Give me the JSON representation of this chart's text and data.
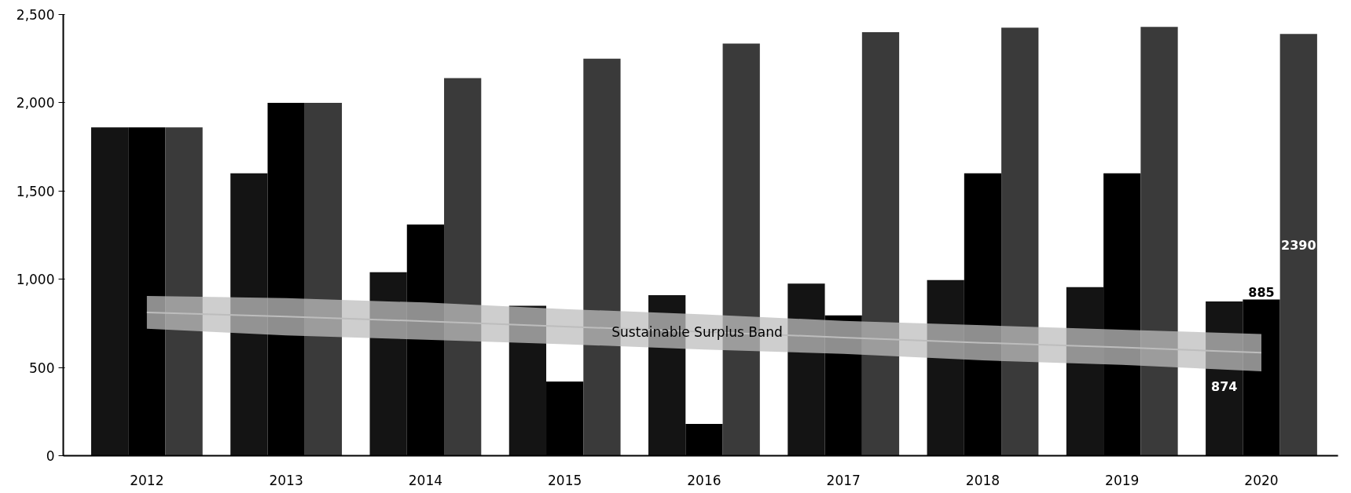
{
  "chart_data": {
    "type": "bar",
    "categories": [
      "2012",
      "2013",
      "2014",
      "2015",
      "2016",
      "2017",
      "2018",
      "2019",
      "2020"
    ],
    "series": [
      {
        "color": "#141414",
        "values": [
          1860,
          1600,
          1040,
          850,
          910,
          975,
          995,
          955,
          874
        ],
        "value_labels": [
          null,
          null,
          null,
          null,
          null,
          null,
          null,
          null,
          "874"
        ]
      },
      {
        "color": "#000000",
        "values": [
          1860,
          2000,
          1310,
          420,
          180,
          795,
          1600,
          1600,
          885
        ],
        "value_labels": [
          null,
          null,
          null,
          null,
          null,
          null,
          null,
          null,
          "885"
        ]
      },
      {
        "color": "#3a3a3a",
        "values": [
          1860,
          2000,
          2140,
          2250,
          2335,
          2400,
          2425,
          2430,
          2390
        ],
        "value_labels": [
          null,
          null,
          null,
          null,
          null,
          null,
          null,
          null,
          "2390"
        ]
      },
      {
        "type": "line",
        "name": "Sustainable Surplus Band",
        "color": "#bdbdbd",
        "values": [
          812,
          788,
          762,
          732,
          702,
          670,
          640,
          614,
          584
        ],
        "upper": [
          905,
          893,
          868,
          831,
          801,
          764,
          739,
          714,
          689
        ],
        "lower": [
          720,
          682,
          657,
          632,
          602,
          577,
          540,
          515,
          478
        ]
      }
    ],
    "ylim": [
      0,
      2500
    ],
    "yticks": [
      0,
      {
        "value": 500,
        "label": "500"
      },
      {
        "value": 1000,
        "label": "1,000"
      },
      {
        "value": 1500,
        "label": "1,500"
      },
      {
        "value": 2000,
        "label": "2,000"
      },
      {
        "value": 2500,
        "label": "2,500"
      }
    ],
    "grid": false
  }
}
